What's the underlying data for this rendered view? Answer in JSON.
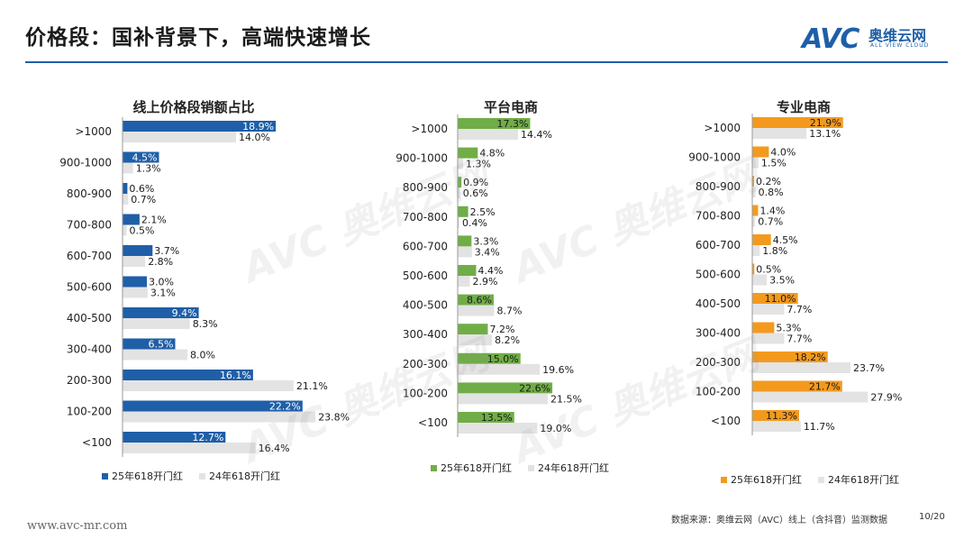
{
  "header": {
    "title": "价格段：国补背景下，高端快速增长",
    "logo_avc": "AVC",
    "logo_cn": "奥维云网",
    "logo_en": "ALL VIEW CLOUD"
  },
  "footer": {
    "url": "www.avc-mr.com",
    "source": "数据来源：奥维云网（AVC）线上（含抖音）监测数据",
    "page": "10/20"
  },
  "colors": {
    "c1": "#1f5fa8",
    "c2": "#70ad47",
    "c3": "#f39a1e",
    "gray": "#e3e3e3"
  },
  "chart_data": [
    {
      "type": "bar",
      "title": "线上价格段销额占比",
      "categories": [
        ">1000",
        "900-1000",
        "800-900",
        "700-800",
        "600-700",
        "500-600",
        "400-500",
        "300-400",
        "200-300",
        "100-200",
        "<100"
      ],
      "series": [
        {
          "name": "25年618开门红",
          "values": [
            18.9,
            4.5,
            0.6,
            2.1,
            3.7,
            3.0,
            9.4,
            6.5,
            16.1,
            22.2,
            12.7
          ]
        },
        {
          "name": "24年618开门红",
          "values": [
            14.0,
            1.3,
            0.7,
            0.5,
            2.8,
            3.1,
            8.3,
            8.0,
            21.1,
            23.8,
            16.4
          ]
        }
      ]
    },
    {
      "type": "bar",
      "title": "平台电商",
      "categories": [
        ">1000",
        "900-1000",
        "800-900",
        "700-800",
        "600-700",
        "500-600",
        "400-500",
        "300-400",
        "200-300",
        "100-200",
        "<100"
      ],
      "series": [
        {
          "name": "25年618开门红",
          "values": [
            17.3,
            4.8,
            0.9,
            2.5,
            3.3,
            4.4,
            8.6,
            7.2,
            15.0,
            22.6,
            13.5
          ]
        },
        {
          "name": "24年618开门红",
          "values": [
            14.4,
            1.3,
            0.6,
            0.4,
            3.4,
            2.9,
            8.7,
            8.2,
            19.6,
            21.5,
            19.0
          ]
        }
      ]
    },
    {
      "type": "bar",
      "title": "专业电商",
      "categories": [
        ">1000",
        "900-1000",
        "800-900",
        "700-800",
        "600-700",
        "500-600",
        "400-500",
        "300-400",
        "200-300",
        "100-200",
        "<100"
      ],
      "series": [
        {
          "name": "25年618开门红",
          "values": [
            21.9,
            4.0,
            0.2,
            1.4,
            4.5,
            0.5,
            11.0,
            5.3,
            18.2,
            21.7,
            11.3
          ]
        },
        {
          "name": "24年618开门红",
          "values": [
            13.1,
            1.5,
            0.8,
            0.7,
            1.8,
            3.5,
            7.7,
            7.7,
            23.7,
            27.9,
            11.7
          ]
        }
      ]
    }
  ]
}
